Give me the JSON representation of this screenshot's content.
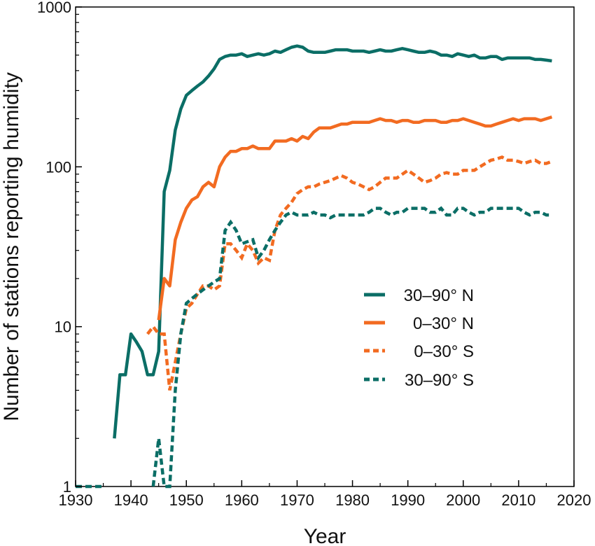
{
  "chart_data": {
    "type": "line",
    "title": "",
    "xlabel": "Year",
    "ylabel": "Number of stations reporting humidity",
    "xlim": [
      1930,
      2020
    ],
    "ylim": [
      1,
      1000
    ],
    "yscale": "log",
    "xticks": [
      "1930",
      "1940",
      "1950",
      "1960",
      "1970",
      "1980",
      "1990",
      "2000",
      "2010",
      "2020"
    ],
    "yticks": [
      "1",
      "10",
      "100",
      "1000"
    ],
    "legend_position": "center-right",
    "series": [
      {
        "name": "30–90° N",
        "color": "#0b6e66",
        "dash": "solid",
        "x": [
          1937,
          1938,
          1939,
          1940,
          1941,
          1942,
          1943,
          1944,
          1945,
          1946,
          1947,
          1948,
          1949,
          1950,
          1951,
          1952,
          1953,
          1954,
          1955,
          1956,
          1957,
          1958,
          1959,
          1960,
          1961,
          1962,
          1963,
          1964,
          1965,
          1966,
          1967,
          1968,
          1969,
          1970,
          1971,
          1972,
          1973,
          1974,
          1975,
          1976,
          1977,
          1978,
          1979,
          1980,
          1981,
          1982,
          1983,
          1984,
          1985,
          1986,
          1987,
          1988,
          1989,
          1990,
          1991,
          1992,
          1993,
          1994,
          1995,
          1996,
          1997,
          1998,
          1999,
          2000,
          2001,
          2002,
          2003,
          2004,
          2005,
          2006,
          2007,
          2008,
          2009,
          2010,
          2011,
          2012,
          2013,
          2014,
          2015,
          2016
        ],
        "y": [
          2,
          5,
          5,
          9,
          8,
          7,
          5,
          5,
          7,
          70,
          95,
          170,
          230,
          280,
          300,
          320,
          340,
          370,
          410,
          470,
          490,
          500,
          500,
          510,
          490,
          500,
          510,
          500,
          510,
          530,
          520,
          540,
          560,
          570,
          560,
          530,
          520,
          520,
          520,
          530,
          540,
          540,
          540,
          530,
          530,
          530,
          520,
          530,
          540,
          530,
          530,
          540,
          550,
          540,
          530,
          520,
          520,
          530,
          520,
          500,
          500,
          490,
          510,
          500,
          490,
          500,
          480,
          480,
          490,
          490,
          470,
          480,
          480,
          480,
          480,
          480,
          470,
          470,
          465,
          460
        ]
      },
      {
        "name": "0–30° N",
        "color": "#f26b21",
        "dash": "solid",
        "x": [
          1945,
          1946,
          1947,
          1948,
          1949,
          1950,
          1951,
          1952,
          1953,
          1954,
          1955,
          1956,
          1957,
          1958,
          1959,
          1960,
          1961,
          1962,
          1963,
          1964,
          1965,
          1966,
          1967,
          1968,
          1969,
          1970,
          1971,
          1972,
          1973,
          1974,
          1975,
          1976,
          1977,
          1978,
          1979,
          1980,
          1981,
          1982,
          1983,
          1984,
          1985,
          1986,
          1987,
          1988,
          1989,
          1990,
          1991,
          1992,
          1993,
          1994,
          1995,
          1996,
          1997,
          1998,
          1999,
          2000,
          2001,
          2002,
          2003,
          2004,
          2005,
          2006,
          2007,
          2008,
          2009,
          2010,
          2011,
          2012,
          2013,
          2014,
          2015,
          2016
        ],
        "y": [
          11,
          20,
          18,
          35,
          45,
          55,
          62,
          65,
          75,
          80,
          75,
          100,
          115,
          125,
          125,
          130,
          130,
          135,
          130,
          130,
          130,
          145,
          145,
          145,
          150,
          145,
          155,
          150,
          165,
          175,
          175,
          175,
          180,
          185,
          185,
          190,
          190,
          190,
          190,
          195,
          200,
          195,
          195,
          190,
          195,
          195,
          190,
          190,
          195,
          195,
          195,
          190,
          190,
          195,
          195,
          200,
          195,
          190,
          185,
          180,
          180,
          185,
          190,
          195,
          200,
          195,
          200,
          200,
          200,
          195,
          200,
          205
        ]
      },
      {
        "name": "0–30° S",
        "color": "#f26b21",
        "dash": "dashed",
        "x": [
          1943,
          1944,
          1945,
          1946,
          1947,
          1948,
          1949,
          1950,
          1951,
          1952,
          1953,
          1954,
          1955,
          1956,
          1957,
          1958,
          1959,
          1960,
          1961,
          1962,
          1963,
          1964,
          1965,
          1966,
          1967,
          1968,
          1969,
          1970,
          1971,
          1972,
          1973,
          1974,
          1975,
          1976,
          1977,
          1978,
          1979,
          1980,
          1981,
          1982,
          1983,
          1984,
          1985,
          1986,
          1987,
          1988,
          1989,
          1990,
          1991,
          1992,
          1993,
          1994,
          1995,
          1996,
          1997,
          1998,
          1999,
          2000,
          2001,
          2002,
          2003,
          2004,
          2005,
          2006,
          2007,
          2008,
          2009,
          2010,
          2011,
          2012,
          2013,
          2014,
          2015,
          2016
        ],
        "y": [
          9,
          10,
          9,
          9,
          4,
          6,
          9,
          13,
          14,
          16,
          18,
          18,
          17,
          18,
          33,
          33,
          30,
          27,
          33,
          30,
          25,
          27,
          26,
          40,
          50,
          55,
          60,
          68,
          72,
          75,
          75,
          78,
          80,
          82,
          85,
          88,
          85,
          80,
          78,
          75,
          72,
          75,
          80,
          85,
          85,
          85,
          90,
          95,
          90,
          85,
          80,
          82,
          85,
          90,
          92,
          90,
          90,
          95,
          95,
          95,
          100,
          105,
          110,
          112,
          115,
          110,
          110,
          108,
          105,
          108,
          110,
          105,
          105,
          108
        ]
      },
      {
        "name": "30–90° S",
        "color": "#0b6e66",
        "dash": "dashed",
        "x": [
          1930,
          1931,
          1932,
          1933,
          1934,
          1935,
          1936,
          1937,
          1938,
          1939,
          1940,
          1941,
          1942,
          1943,
          1944,
          1945,
          1946,
          1947,
          1948,
          1949,
          1950,
          1951,
          1952,
          1953,
          1954,
          1955,
          1956,
          1957,
          1958,
          1959,
          1960,
          1961,
          1962,
          1963,
          1964,
          1965,
          1966,
          1967,
          1968,
          1969,
          1970,
          1971,
          1972,
          1973,
          1974,
          1975,
          1976,
          1977,
          1978,
          1979,
          1980,
          1981,
          1982,
          1983,
          1984,
          1985,
          1986,
          1987,
          1988,
          1989,
          1990,
          1991,
          1992,
          1993,
          1994,
          1995,
          1996,
          1997,
          1998,
          1999,
          2000,
          2001,
          2002,
          2003,
          2004,
          2005,
          2006,
          2007,
          2008,
          2009,
          2010,
          2011,
          2012,
          2013,
          2014,
          2015,
          2016
        ],
        "y": [
          1,
          1,
          1,
          1,
          1,
          1,
          null,
          null,
          null,
          null,
          null,
          null,
          null,
          null,
          1,
          2,
          1,
          1,
          4,
          9,
          14,
          15,
          16,
          17,
          18,
          19,
          20,
          40,
          45,
          40,
          33,
          34,
          35,
          27,
          30,
          35,
          40,
          45,
          50,
          52,
          50,
          50,
          50,
          52,
          50,
          50,
          48,
          50,
          50,
          50,
          50,
          50,
          50,
          52,
          55,
          55,
          52,
          50,
          52,
          52,
          55,
          55,
          55,
          55,
          52,
          52,
          55,
          50,
          50,
          55,
          55,
          52,
          50,
          52,
          52,
          55,
          55,
          55,
          55,
          55,
          55,
          52,
          50,
          52,
          52,
          50,
          50
        ]
      }
    ]
  }
}
